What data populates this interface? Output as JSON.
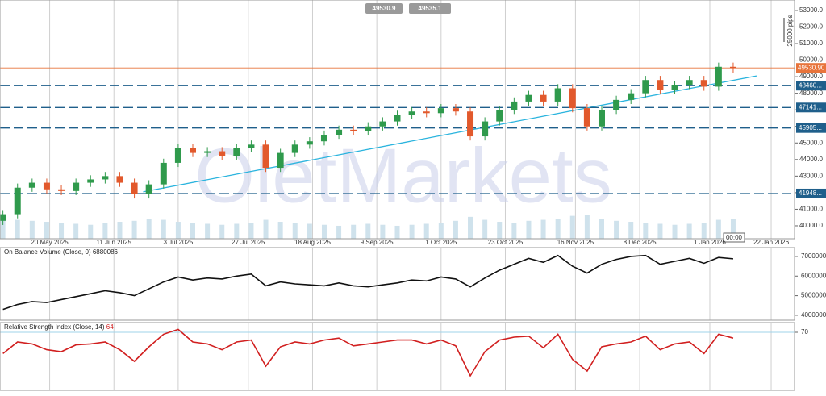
{
  "chart_data": [
    {
      "type": "candlestick",
      "x": [
        "2025-05-04",
        "2025-05-09",
        "2025-05-14",
        "2025-05-19",
        "2025-05-24",
        "2025-05-29",
        "2025-06-03",
        "2025-06-08",
        "2025-06-13",
        "2025-06-18",
        "2025-06-23",
        "2025-06-28",
        "2025-07-03",
        "2025-07-08",
        "2025-07-13",
        "2025-07-18",
        "2025-07-23",
        "2025-07-28",
        "2025-08-02",
        "2025-08-07",
        "2025-08-12",
        "2025-08-17",
        "2025-08-22",
        "2025-08-27",
        "2025-09-01",
        "2025-09-06",
        "2025-09-11",
        "2025-09-16",
        "2025-09-21",
        "2025-09-26",
        "2025-10-01",
        "2025-10-06",
        "2025-10-11",
        "2025-10-16",
        "2025-10-21",
        "2025-10-26",
        "2025-10-31",
        "2025-11-05",
        "2025-11-10",
        "2025-11-15",
        "2025-11-20",
        "2025-11-25",
        "2025-11-30",
        "2025-12-05",
        "2025-12-10",
        "2025-12-15",
        "2025-12-20",
        "2025-12-25",
        "2025-12-30",
        "2026-01-04",
        "2026-01-09"
      ],
      "open": [
        40300,
        40700,
        42300,
        42600,
        42200,
        42100,
        42600,
        42800,
        43000,
        42600,
        41900,
        42500,
        43800,
        44700,
        44400,
        44500,
        44200,
        44700,
        44900,
        43500,
        44400,
        44900,
        45100,
        45500,
        45800,
        45700,
        46000,
        46300,
        46700,
        46900,
        46800,
        47100,
        46900,
        45400,
        46300,
        47000,
        47500,
        47900,
        47500,
        48300,
        47100,
        46000,
        47000,
        47600,
        48000,
        48800,
        48200,
        48500,
        48800,
        48400,
        49600
      ],
      "high": [
        40950,
        42550,
        42850,
        42850,
        42450,
        42850,
        43050,
        43250,
        43250,
        42850,
        42750,
        44050,
        44950,
        44950,
        44750,
        44750,
        44950,
        45150,
        45150,
        44650,
        45150,
        45350,
        45750,
        46050,
        46050,
        46250,
        46550,
        46950,
        47150,
        47150,
        47350,
        47350,
        47150,
        46550,
        47250,
        47750,
        48150,
        48150,
        48550,
        48550,
        47350,
        47250,
        47850,
        48250,
        49050,
        49050,
        48750,
        49050,
        49050,
        49850,
        49850
      ],
      "low": [
        40050,
        40450,
        42050,
        41950,
        41850,
        41850,
        42350,
        42550,
        42350,
        41650,
        41650,
        42250,
        43550,
        44150,
        44150,
        43950,
        43950,
        44450,
        43250,
        43250,
        44150,
        44650,
        44850,
        45250,
        45450,
        45450,
        45750,
        46050,
        46450,
        46550,
        46550,
        46650,
        45150,
        45150,
        46050,
        46750,
        47250,
        47250,
        47250,
        46850,
        45750,
        45750,
        46750,
        47350,
        47750,
        47950,
        47950,
        48250,
        48150,
        48150,
        49250
      ],
      "close": [
        40700,
        42300,
        42600,
        42200,
        42100,
        42600,
        42800,
        43000,
        42600,
        41900,
        42500,
        43800,
        44700,
        44400,
        44500,
        44200,
        44700,
        44900,
        43500,
        44400,
        44900,
        45100,
        45500,
        45800,
        45700,
        46000,
        46300,
        46700,
        46900,
        46800,
        47100,
        46900,
        45400,
        46300,
        47000,
        47500,
        47900,
        47500,
        48300,
        47100,
        46000,
        47000,
        47600,
        48000,
        48800,
        48200,
        48500,
        48800,
        48400,
        49600,
        49530.9
      ],
      "volume": [
        110,
        95,
        90,
        85,
        80,
        75,
        70,
        80,
        85,
        90,
        100,
        95,
        85,
        80,
        75,
        70,
        75,
        80,
        95,
        85,
        80,
        75,
        70,
        65,
        70,
        75,
        70,
        65,
        70,
        75,
        80,
        90,
        110,
        95,
        85,
        80,
        90,
        95,
        100,
        115,
        120,
        100,
        90,
        85,
        80,
        75,
        70,
        75,
        80,
        95,
        100
      ],
      "up_color": "#2f9a4c",
      "down_color": "#e2592c",
      "volume_color": "#cfe2ec",
      "xlim": [
        "2025-05-03",
        "2026-01-30"
      ],
      "xticks": [
        {
          "value": "2025-05-20",
          "label": "20 May 2025"
        },
        {
          "value": "2025-06-11",
          "label": "11 Jun 2025"
        },
        {
          "value": "2025-07-03",
          "label": "3 Jul 2025"
        },
        {
          "value": "2025-07-27",
          "label": "27 Jul 2025"
        },
        {
          "value": "2025-08-18",
          "label": "18 Aug 2025"
        },
        {
          "value": "2025-09-09",
          "label": "9 Sep 2025"
        },
        {
          "value": "2025-10-01",
          "label": "1 Oct 2025"
        },
        {
          "value": "2025-10-23",
          "label": "23 Oct 2025"
        },
        {
          "value": "2025-11-16",
          "label": "16 Nov 2025"
        },
        {
          "value": "2025-12-08",
          "label": "8 Dec 2025"
        },
        {
          "value": "2026-01-01",
          "label": "1 Jan 2026"
        },
        {
          "value": "2026-01-22",
          "label": "22 Jan 2026"
        }
      ],
      "ylim": [
        39220,
        53630
      ],
      "yticks": [
        {
          "value": 40000,
          "label": "40000.0"
        },
        {
          "value": 41000,
          "label": "41000.0"
        },
        {
          "value": 42000,
          "label": "42000.0"
        },
        {
          "value": 43000,
          "label": "43000.0"
        },
        {
          "value": 44000,
          "label": "44000.0"
        },
        {
          "value": 45000,
          "label": "45000.0"
        },
        {
          "value": 46000,
          "label": "46000.0"
        },
        {
          "value": 47000,
          "label": "47000.0"
        },
        {
          "value": 48000,
          "label": "48000.0"
        },
        {
          "value": 49000,
          "label": "49000.0"
        },
        {
          "value": 50000,
          "label": "50000.0"
        },
        {
          "value": 51000,
          "label": "51000.0"
        },
        {
          "value": 52000,
          "label": "52000.0"
        },
        {
          "value": 53000,
          "label": "53000.0"
        }
      ],
      "vlim": [
        0,
        1200
      ],
      "grid": true,
      "levels": [
        {
          "value": 48460,
          "label": "48460..."
        },
        {
          "value": 47141,
          "label": "47141..."
        },
        {
          "value": 45905,
          "label": "45905..."
        },
        {
          "value": 41948,
          "label": "41948..."
        }
      ],
      "level_color": "#1f5f8b",
      "last_price": {
        "value": 49530.9,
        "label": "49530.90",
        "color": "#e8743b"
      },
      "trendline": {
        "x": [
          "2025-06-21",
          "2026-01-17"
        ],
        "values": [
          42050,
          49050
        ],
        "color": "#2bb4de"
      },
      "quotes": [
        49530.9,
        49535.1
      ],
      "scale_note": "25000 pips",
      "time_label": "00:00",
      "watermark": "OletMarkets"
    },
    {
      "type": "line",
      "title": "On Balance Volume (Close, 0)",
      "last_value": 6880086,
      "color": "#111111",
      "values": [
        4300000,
        4550000,
        4700000,
        4650000,
        4800000,
        4950000,
        5100000,
        5250000,
        5150000,
        5000000,
        5350000,
        5700000,
        5950000,
        5800000,
        5900000,
        5850000,
        6000000,
        6100000,
        5500000,
        5700000,
        5600000,
        5550000,
        5500000,
        5650000,
        5500000,
        5450000,
        5550000,
        5650000,
        5800000,
        5750000,
        5950000,
        5850000,
        5450000,
        5900000,
        6300000,
        6600000,
        6900000,
        6700000,
        7050000,
        6500000,
        6150000,
        6600000,
        6850000,
        7000000,
        7050000,
        6600000,
        6750000,
        6900000,
        6650000,
        6950000,
        6880086
      ],
      "ylim": [
        3750000,
        7450000
      ],
      "yticks": [
        4000000,
        5000000,
        6000000,
        7000000
      ]
    },
    {
      "type": "line",
      "title": "Relative Strength Index (Close, 14)",
      "last_value": 64,
      "color": "#d11f1f",
      "values": [
        48,
        60,
        58,
        52,
        50,
        57,
        58,
        60,
        52,
        40,
        55,
        68,
        73,
        60,
        58,
        52,
        60,
        62,
        35,
        55,
        60,
        58,
        62,
        64,
        56,
        58,
        60,
        62,
        62,
        58,
        62,
        56,
        25,
        50,
        62,
        65,
        66,
        54,
        68,
        42,
        30,
        55,
        58,
        60,
        66,
        52,
        58,
        60,
        48,
        68,
        64
      ],
      "ylim": [
        10,
        80
      ],
      "yticks": [
        70
      ],
      "reference_color": "#9fd3ea"
    }
  ]
}
